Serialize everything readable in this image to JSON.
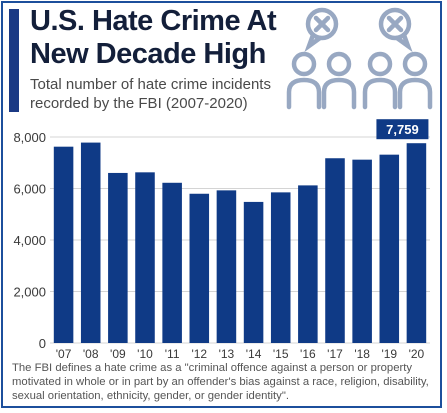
{
  "header": {
    "title": "U.S. Hate Crime At New Decade High",
    "subtitle": "Total number of hate crime incidents recorded by the FBI (2007-2020)"
  },
  "illustration": {
    "icons": [
      "cross-bubble-icon",
      "person-icon"
    ]
  },
  "footnote": "The FBI defines a hate crime as a \"criminal offence against a person or property motivated in whole or in part by an offender's bias against a race, religion, disability, sexual orientation, ethnicity, gender, or gender identity\".",
  "colors": {
    "bar": "#0f3a86",
    "accent": "#1b3a84",
    "frame": "#1c4f9c",
    "icon": "#98a8c2"
  },
  "chart_data": {
    "type": "bar",
    "categories": [
      "'07",
      "'08",
      "'09",
      "'10",
      "'11",
      "'12",
      "'13",
      "'14",
      "'15",
      "'16",
      "'17",
      "'18",
      "'19",
      "'20"
    ],
    "values": [
      7624,
      7783,
      6604,
      6628,
      6222,
      5796,
      5928,
      5479,
      5850,
      6121,
      7175,
      7120,
      7314,
      7759
    ],
    "ylim": [
      0,
      8000
    ],
    "yticks": [
      0,
      2000,
      4000,
      6000,
      8000
    ],
    "ytick_labels": [
      "0",
      "2,000",
      "4,000",
      "6,000",
      "8,000"
    ],
    "grid": true,
    "highlight": {
      "index": 13,
      "label": "7,759"
    }
  }
}
